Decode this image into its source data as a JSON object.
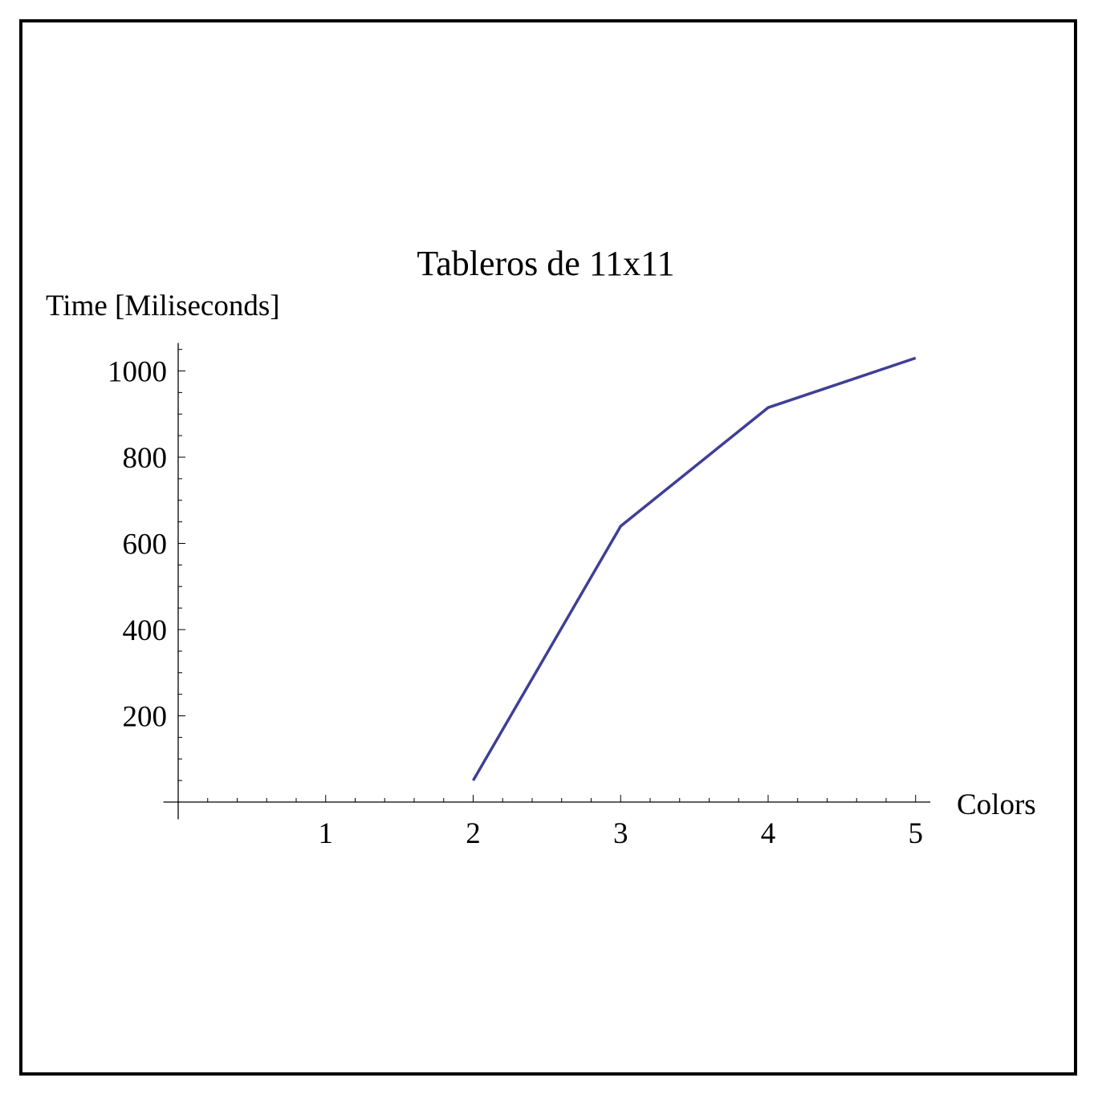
{
  "chart_data": {
    "type": "line",
    "title": "Tableros de 11x11",
    "xlabel": "Colors",
    "ylabel": "Time [Miliseconds]",
    "x": [
      2,
      3,
      4,
      5
    ],
    "series": [
      {
        "values": [
          50,
          640,
          915,
          1030
        ],
        "color": "#3f3f96"
      }
    ],
    "xlim": [
      -0.1,
      5.1
    ],
    "ylim": [
      -40,
      1065
    ],
    "x_ticks": [
      1,
      2,
      3,
      4,
      5
    ],
    "y_ticks": [
      200,
      400,
      600,
      800,
      1000
    ],
    "x_minor_step": 0.2,
    "y_minor_step": 50,
    "grid": false,
    "legend": "none"
  }
}
